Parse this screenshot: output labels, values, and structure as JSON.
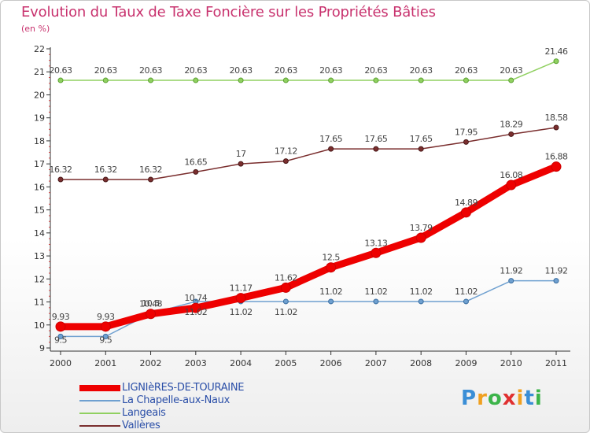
{
  "page": {
    "title": "Evolution du Taux de Taxe Foncière sur les Propriétés Bâties",
    "unit_label": "(en %)"
  },
  "logo": {
    "text": "Proxiti",
    "letters": [
      "P",
      "r",
      "o",
      "x",
      "i",
      "t",
      "i"
    ],
    "colors": [
      "#3a8ed6",
      "#f0a020",
      "#3cb44a",
      "#e03030",
      "#f0a020",
      "#3a8ed6",
      "#3cb44a"
    ]
  },
  "chart_data": {
    "type": "line",
    "title": "Evolution du Taux de Taxe Foncière sur les Propriétés Bâties",
    "ylabel": "(en %)",
    "xlabel": "",
    "ylim": [
      9,
      22
    ],
    "yticks": [
      9,
      10,
      11,
      12,
      13,
      14,
      15,
      16,
      17,
      18,
      19,
      20,
      21,
      22
    ],
    "grid": false,
    "legend_position": "bottom-left",
    "categories": [
      "2000",
      "2001",
      "2002",
      "2003",
      "2004",
      "2005",
      "2006",
      "2007",
      "2008",
      "2009",
      "2010",
      "2011"
    ],
    "series": [
      {
        "name": "LIGNIèRES-DE-TOURAINE",
        "color": "#ee0000",
        "values": [
          9.93,
          9.93,
          10.48,
          10.74,
          11.17,
          11.62,
          12.5,
          13.13,
          13.79,
          14.89,
          16.08,
          16.88
        ],
        "labels": [
          "9.93",
          "9.93",
          "10.48",
          "10.74",
          "11.17",
          "11.62",
          "12.5",
          "13.13",
          "13.79",
          "14.89",
          "16.08",
          "16.88"
        ]
      },
      {
        "name": "La Chapelle-aux-Naux",
        "color": "#6fa0d0",
        "values": [
          9.5,
          9.5,
          10.5,
          11.02,
          11.02,
          11.02,
          11.02,
          11.02,
          11.02,
          11.02,
          11.92,
          11.92
        ],
        "labels": [
          "9.5",
          "9.5",
          "10.5",
          "11.02",
          "11.02",
          "11.02",
          "11.02",
          "11.02",
          "11.02",
          "11.02",
          "11.92",
          "11.92"
        ]
      },
      {
        "name": "Langeais",
        "color": "#90d060",
        "values": [
          20.63,
          20.63,
          20.63,
          20.63,
          20.63,
          20.63,
          20.63,
          20.63,
          20.63,
          20.63,
          20.63,
          21.46
        ],
        "labels": [
          "20.63",
          "20.63",
          "20.63",
          "20.63",
          "20.63",
          "20.63",
          "20.63",
          "20.63",
          "20.63",
          "20.63",
          "20.63",
          "21.46"
        ]
      },
      {
        "name": "Vallères",
        "color": "#7a2e2e",
        "values": [
          16.32,
          16.32,
          16.32,
          16.65,
          17,
          17.12,
          17.65,
          17.65,
          17.65,
          17.95,
          18.29,
          18.58
        ],
        "labels": [
          "16.32",
          "16.32",
          "16.32",
          "16.65",
          "17",
          "17.12",
          "17.65",
          "17.65",
          "17.65",
          "17.95",
          "18.29",
          "18.58"
        ]
      }
    ]
  }
}
